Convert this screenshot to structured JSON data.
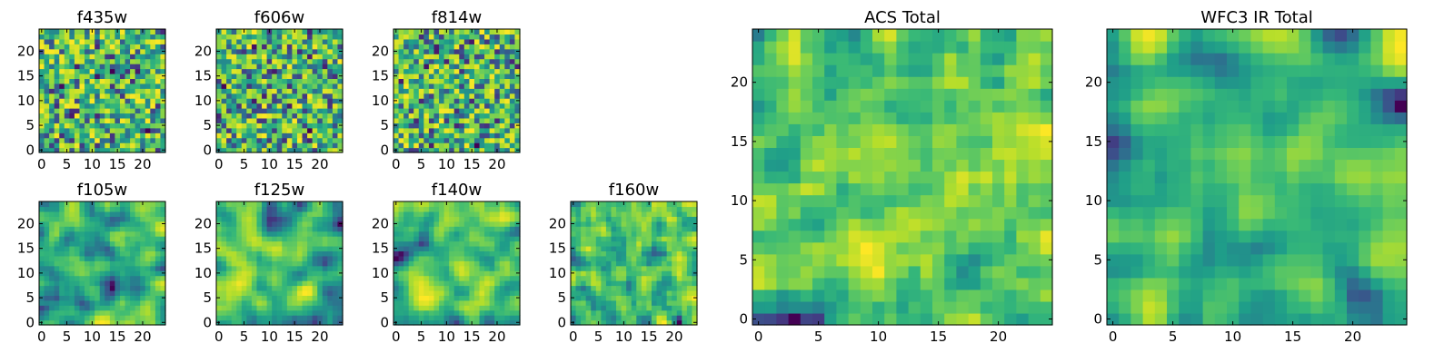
{
  "chart_data": [
    {
      "type": "heatmap",
      "title": "f435w",
      "grid_size": 25,
      "colormap": "viridis",
      "seed": 11,
      "smooth": 0,
      "xticks": [
        0,
        5,
        10,
        15,
        20
      ],
      "yticks": [
        0,
        5,
        10,
        15,
        20
      ],
      "xlim": [
        0,
        25
      ],
      "ylim": [
        0,
        25
      ]
    },
    {
      "type": "heatmap",
      "title": "f606w",
      "grid_size": 25,
      "colormap": "viridis",
      "seed": 23,
      "smooth": 0,
      "xticks": [
        0,
        5,
        10,
        15,
        20
      ],
      "yticks": [
        0,
        5,
        10,
        15,
        20
      ],
      "xlim": [
        0,
        25
      ],
      "ylim": [
        0,
        25
      ]
    },
    {
      "type": "heatmap",
      "title": "f814w",
      "grid_size": 25,
      "colormap": "viridis",
      "seed": 37,
      "smooth": 0,
      "xticks": [
        0,
        5,
        10,
        15,
        20
      ],
      "yticks": [
        0,
        5,
        10,
        15,
        20
      ],
      "xlim": [
        0,
        25
      ],
      "ylim": [
        0,
        25
      ]
    },
    {
      "type": "heatmap",
      "title": "f105w",
      "grid_size": 25,
      "colormap": "viridis",
      "seed": 41,
      "smooth": 2,
      "xticks": [
        0,
        5,
        10,
        15,
        20
      ],
      "yticks": [
        0,
        5,
        10,
        15,
        20
      ],
      "xlim": [
        0,
        25
      ],
      "ylim": [
        0,
        25
      ]
    },
    {
      "type": "heatmap",
      "title": "f125w",
      "grid_size": 25,
      "colormap": "viridis",
      "seed": 53,
      "smooth": 2,
      "xticks": [
        0,
        5,
        10,
        15,
        20
      ],
      "yticks": [
        0,
        5,
        10,
        15,
        20
      ],
      "xlim": [
        0,
        25
      ],
      "ylim": [
        0,
        25
      ]
    },
    {
      "type": "heatmap",
      "title": "f140w",
      "grid_size": 25,
      "colormap": "viridis",
      "seed": 67,
      "smooth": 2,
      "xticks": [
        0,
        5,
        10,
        15,
        20
      ],
      "yticks": [
        0,
        5,
        10,
        15,
        20
      ],
      "xlim": [
        0,
        25
      ],
      "ylim": [
        0,
        25
      ]
    },
    {
      "type": "heatmap",
      "title": "f160w",
      "grid_size": 25,
      "colormap": "viridis",
      "seed": 79,
      "smooth": 1,
      "xticks": [
        0,
        5,
        10,
        15,
        20
      ],
      "yticks": [
        0,
        5,
        10,
        15,
        20
      ],
      "xlim": [
        0,
        25
      ],
      "ylim": [
        0,
        25
      ]
    },
    {
      "type": "heatmap",
      "title": "ACS Total",
      "grid_size": 25,
      "colormap": "viridis",
      "seed": 97,
      "smooth": 1,
      "xticks": [
        0,
        5,
        10,
        15,
        20
      ],
      "yticks": [
        0,
        5,
        10,
        15,
        20
      ],
      "xlim": [
        0,
        25
      ],
      "ylim": [
        0,
        25
      ]
    },
    {
      "type": "heatmap",
      "title": "WFC3 IR Total",
      "grid_size": 25,
      "colormap": "viridis",
      "seed": 113,
      "smooth": 2,
      "xticks": [
        0,
        5,
        10,
        15,
        20
      ],
      "yticks": [
        0,
        5,
        10,
        15,
        20
      ],
      "xlim": [
        0,
        25
      ],
      "ylim": [
        0,
        25
      ]
    }
  ]
}
